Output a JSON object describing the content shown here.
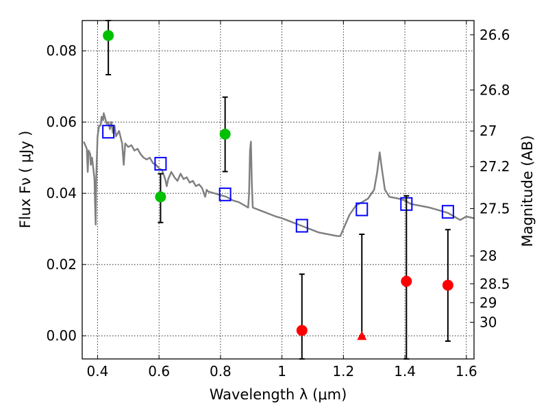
{
  "chart_data": {
    "type": "scatter",
    "xlabel": "Wavelength  λ (μm)",
    "ylabel": "Flux  Fν  ( μJy )",
    "ylabel_right": "Magnitude (AB)",
    "xlim": [
      0.35,
      1.625
    ],
    "ylim": [
      -0.0065,
      0.0885
    ],
    "grid": true,
    "x_ticks": [
      {
        "value": 0.4,
        "label": "0.4"
      },
      {
        "value": 0.6,
        "label": "0.6"
      },
      {
        "value": 0.8,
        "label": "0.8"
      },
      {
        "value": 1.0,
        "label": "1"
      },
      {
        "value": 1.2,
        "label": "1.2"
      },
      {
        "value": 1.4,
        "label": "1.4"
      },
      {
        "value": 1.6,
        "label": "1.6"
      }
    ],
    "y_ticks": [
      {
        "value": 0.0,
        "label": "0.00"
      },
      {
        "value": 0.02,
        "label": "0.02"
      },
      {
        "value": 0.04,
        "label": "0.04"
      },
      {
        "value": 0.06,
        "label": "0.06"
      },
      {
        "value": 0.08,
        "label": "0.08"
      }
    ],
    "mag_ticks": [
      {
        "label": "26.6",
        "value": 0.0845
      },
      {
        "label": "26.8",
        "value": 0.069
      },
      {
        "label": "27",
        "value": 0.0575
      },
      {
        "label": "27.2",
        "value": 0.0475
      },
      {
        "label": "27.5",
        "value": 0.0357
      },
      {
        "label": "28",
        "value": 0.0224
      },
      {
        "label": "28.5",
        "value": 0.0146
      },
      {
        "label": "29",
        "value": 0.0093
      },
      {
        "label": "30",
        "value": 0.0038
      }
    ],
    "series": [
      {
        "kind": "line",
        "color": "#808080",
        "points": [
          [
            0.355,
            0.0545
          ],
          [
            0.36,
            0.0535
          ],
          [
            0.365,
            0.0525
          ],
          [
            0.368,
            0.046
          ],
          [
            0.371,
            0.052
          ],
          [
            0.376,
            0.051
          ],
          [
            0.378,
            0.048
          ],
          [
            0.382,
            0.05
          ],
          [
            0.386,
            0.047
          ],
          [
            0.39,
            0.044
          ],
          [
            0.392,
            0.037
          ],
          [
            0.394,
            0.0312
          ],
          [
            0.396,
            0.045
          ],
          [
            0.4,
            0.056
          ],
          [
            0.405,
            0.059
          ],
          [
            0.41,
            0.059
          ],
          [
            0.413,
            0.0615
          ],
          [
            0.418,
            0.0605
          ],
          [
            0.42,
            0.0625
          ],
          [
            0.425,
            0.061
          ],
          [
            0.43,
            0.0595
          ],
          [
            0.435,
            0.06
          ],
          [
            0.44,
            0.058
          ],
          [
            0.445,
            0.06
          ],
          [
            0.45,
            0.057
          ],
          [
            0.455,
            0.059
          ],
          [
            0.46,
            0.056
          ],
          [
            0.47,
            0.0575
          ],
          [
            0.48,
            0.054
          ],
          [
            0.485,
            0.048
          ],
          [
            0.49,
            0.054
          ],
          [
            0.5,
            0.053
          ],
          [
            0.51,
            0.0535
          ],
          [
            0.52,
            0.052
          ],
          [
            0.53,
            0.0525
          ],
          [
            0.54,
            0.051
          ],
          [
            0.55,
            0.05
          ],
          [
            0.56,
            0.0495
          ],
          [
            0.57,
            0.05
          ],
          [
            0.58,
            0.0485
          ],
          [
            0.59,
            0.048
          ],
          [
            0.6,
            0.047
          ],
          [
            0.61,
            0.0465
          ],
          [
            0.62,
            0.044
          ],
          [
            0.625,
            0.042
          ],
          [
            0.63,
            0.044
          ],
          [
            0.64,
            0.046
          ],
          [
            0.65,
            0.0445
          ],
          [
            0.66,
            0.0435
          ],
          [
            0.67,
            0.0455
          ],
          [
            0.68,
            0.044
          ],
          [
            0.69,
            0.0445
          ],
          [
            0.7,
            0.043
          ],
          [
            0.71,
            0.0435
          ],
          [
            0.72,
            0.042
          ],
          [
            0.73,
            0.0425
          ],
          [
            0.74,
            0.0415
          ],
          [
            0.75,
            0.039
          ],
          [
            0.755,
            0.041
          ],
          [
            0.76,
            0.0405
          ],
          [
            0.78,
            0.04
          ],
          [
            0.8,
            0.0395
          ],
          [
            0.82,
            0.039
          ],
          [
            0.84,
            0.038
          ],
          [
            0.86,
            0.0375
          ],
          [
            0.88,
            0.0365
          ],
          [
            0.89,
            0.036
          ],
          [
            0.893,
            0.04
          ],
          [
            0.896,
            0.052
          ],
          [
            0.899,
            0.0545
          ],
          [
            0.902,
            0.043
          ],
          [
            0.905,
            0.036
          ],
          [
            0.92,
            0.0355
          ],
          [
            0.95,
            0.0345
          ],
          [
            0.98,
            0.0335
          ],
          [
            1.0,
            0.033
          ],
          [
            1.03,
            0.032
          ],
          [
            1.06,
            0.031
          ],
          [
            1.09,
            0.03
          ],
          [
            1.12,
            0.029
          ],
          [
            1.15,
            0.0285
          ],
          [
            1.18,
            0.028
          ],
          [
            1.19,
            0.028
          ],
          [
            1.2,
            0.03
          ],
          [
            1.22,
            0.034
          ],
          [
            1.24,
            0.0365
          ],
          [
            1.26,
            0.0375
          ],
          [
            1.28,
            0.0385
          ],
          [
            1.3,
            0.041
          ],
          [
            1.31,
            0.046
          ],
          [
            1.318,
            0.0515
          ],
          [
            1.325,
            0.047
          ],
          [
            1.335,
            0.041
          ],
          [
            1.35,
            0.039
          ],
          [
            1.38,
            0.0385
          ],
          [
            1.4,
            0.038
          ],
          [
            1.42,
            0.037
          ],
          [
            1.45,
            0.0365
          ],
          [
            1.48,
            0.036
          ],
          [
            1.5,
            0.0355
          ],
          [
            1.52,
            0.035
          ],
          [
            1.54,
            0.0345
          ],
          [
            1.56,
            0.0335
          ],
          [
            1.58,
            0.0325
          ],
          [
            1.6,
            0.0335
          ],
          [
            1.625,
            0.033
          ]
        ]
      },
      {
        "kind": "open-square",
        "color": "#0000ff",
        "points": [
          [
            0.435,
            0.0573
          ],
          [
            0.605,
            0.0483
          ],
          [
            0.815,
            0.0397
          ],
          [
            1.065,
            0.0309
          ],
          [
            1.26,
            0.0355
          ],
          [
            1.405,
            0.037
          ],
          [
            1.54,
            0.0348
          ]
        ]
      },
      {
        "kind": "filled-circle",
        "color": "#00c000",
        "points": [
          [
            0.435,
            0.0843
          ],
          [
            0.605,
            0.039
          ],
          [
            0.815,
            0.0566
          ]
        ],
        "errors": [
          [
            0.0733,
            0.0885
          ],
          [
            0.0318,
            0.0455
          ],
          [
            0.0461,
            0.067
          ]
        ]
      },
      {
        "kind": "filled-circle",
        "color": "#ff0000",
        "points": [
          [
            1.065,
            0.0015
          ],
          [
            1.405,
            0.0153
          ],
          [
            1.54,
            0.0142
          ]
        ],
        "errors": [
          [
            -0.0065,
            0.0173
          ],
          [
            -0.0065,
            0.0393
          ],
          [
            -0.0015,
            0.0298
          ]
        ]
      },
      {
        "kind": "filled-triangle",
        "color": "#ff0000",
        "points": [
          [
            1.26,
            0.0
          ]
        ],
        "errors": [
          [
            0.0,
            0.0285
          ]
        ]
      }
    ]
  }
}
